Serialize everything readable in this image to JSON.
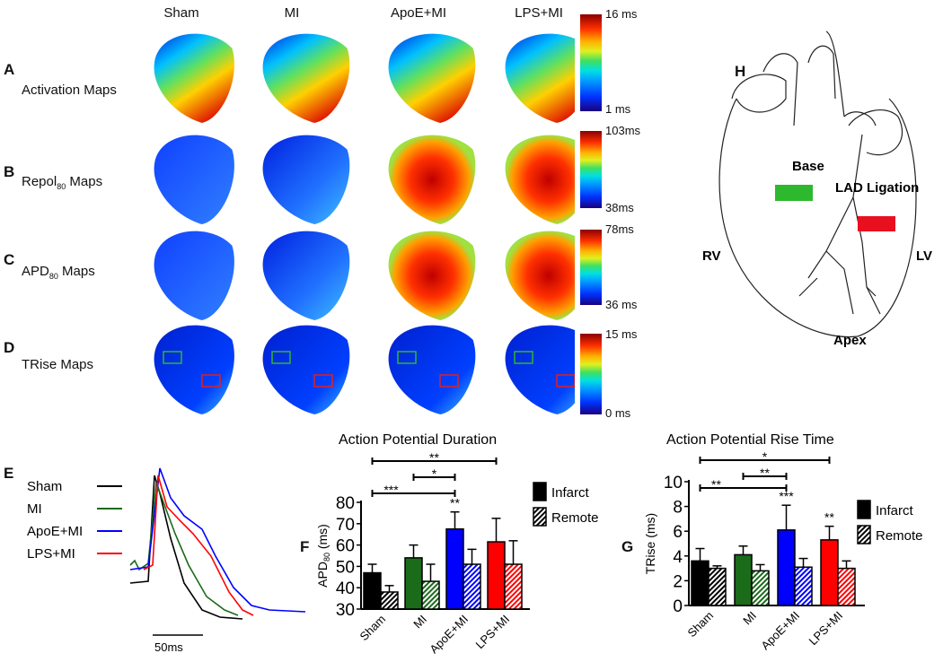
{
  "panels": {
    "A": "A",
    "B": "B",
    "C": "C",
    "D": "D",
    "E": "E",
    "F": "F",
    "G": "G",
    "H": "H"
  },
  "columns": [
    "Sham",
    "MI",
    "ApoE+MI",
    "LPS+MI"
  ],
  "rows": {
    "A": {
      "label": "Activation Maps",
      "cb_max": "16 ms",
      "cb_min": "1 ms"
    },
    "B": {
      "label_main": "Repol",
      "label_sub": "80",
      "label_rest": " Maps",
      "cb_max": "103ms",
      "cb_min": "38ms"
    },
    "C": {
      "label_main": "APD",
      "label_sub": "80",
      "label_rest": " Maps",
      "cb_max": "78ms",
      "cb_min": "36 ms"
    },
    "D": {
      "label": "TRise Maps",
      "cb_max": "15 ms",
      "cb_min": "0 ms"
    }
  },
  "colors": {
    "Sham": "#000000",
    "MI": "#1a6b1a",
    "ApoE+MI": "#0000ff",
    "LPS+MI": "#ff0000",
    "roi_remote": "#2eb82e",
    "roi_infarct": "#e02020"
  },
  "traces": {
    "legend": [
      "Sham",
      "MI",
      "ApoE+MI",
      "LPS+MI"
    ],
    "scale_label": "50ms"
  },
  "heart": {
    "base": "Base",
    "lad": "LAD Ligation",
    "rv": "RV",
    "lv": "LV",
    "apex": "Apex"
  },
  "chart_data": [
    {
      "type": "bar",
      "title": "Action Potential Duration",
      "ylabel_main": "APD",
      "ylabel_sub": "80",
      "ylabel_rest": " (ms)",
      "categories": [
        "Sham",
        "MI",
        "ApoE+MI",
        "LPS+MI"
      ],
      "ylim": [
        30,
        80
      ],
      "yticks": [
        "30",
        "40",
        "50",
        "60",
        "70",
        "80"
      ],
      "series": [
        {
          "name": "Infarct",
          "values": [
            47,
            54,
            67.5,
            61.5
          ],
          "errors": [
            4,
            6,
            8,
            11
          ]
        },
        {
          "name": "Remote",
          "values": [
            38,
            43,
            51,
            51
          ],
          "errors": [
            3,
            8,
            7,
            11
          ]
        }
      ],
      "brackets": [
        {
          "from": 0,
          "to": 3,
          "label": "**"
        },
        {
          "from": 1,
          "to": 2,
          "label": "*"
        },
        {
          "from": 0,
          "to": 2,
          "label": "***"
        }
      ],
      "bar_annotations": [
        {
          "category": 2,
          "label": "**"
        }
      ],
      "legend": "right"
    },
    {
      "type": "bar",
      "title": "Action Potential Rise Time",
      "ylabel": "TRise (ms)",
      "categories": [
        "Sham",
        "MI",
        "ApoE+MI",
        "LPS+MI"
      ],
      "ylim": [
        0,
        10
      ],
      "yticks": [
        "0",
        "2",
        "4",
        "6",
        "8",
        "10"
      ],
      "series": [
        {
          "name": "Infarct",
          "values": [
            3.6,
            4.1,
            6.1,
            5.3
          ],
          "errors": [
            1.0,
            0.7,
            2.0,
            1.1
          ]
        },
        {
          "name": "Remote",
          "values": [
            3.0,
            2.8,
            3.1,
            3.0
          ],
          "errors": [
            0.2,
            0.5,
            0.7,
            0.6
          ]
        }
      ],
      "brackets": [
        {
          "from": 0,
          "to": 3,
          "label": "*"
        },
        {
          "from": 1,
          "to": 2,
          "label": "**"
        },
        {
          "from": 0,
          "to": 2,
          "label": "**"
        }
      ],
      "bar_annotations": [
        {
          "category": 2,
          "label": "***"
        },
        {
          "category": 3,
          "label": "**"
        }
      ],
      "legend": "right"
    }
  ]
}
